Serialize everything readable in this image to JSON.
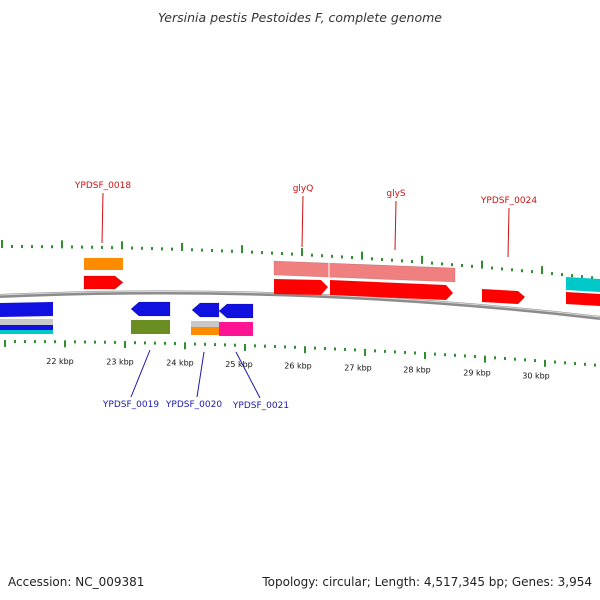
{
  "title": "Yersinia pestis Pestoides F, complete genome",
  "footer": {
    "accession": "Accession: NC_009381",
    "summary": "Topology: circular; Length: 4,517,345 bp; Genes: 3,954"
  },
  "colors": {
    "tick": "#2f8f2f",
    "backbone": "#8c8c8c",
    "label_top": "#cc1111",
    "label_bottom": "#1a1aa8",
    "red": "#ff0000",
    "salmon": "#f08080",
    "orange": "#ff8c00",
    "blue": "#1010e0",
    "olive": "#6b8e23",
    "silver": "#c8c8c8",
    "pink": "#ff1493",
    "cyan": "#00c8c8"
  },
  "scale": {
    "labels": [
      "22 kbp",
      "23 kbp",
      "24 kbp",
      "25 kbp",
      "26 kbp",
      "27 kbp",
      "28 kbp",
      "29 kbp",
      "30 kbp"
    ]
  },
  "gene_labels_top": [
    "YPDSF_0018",
    "glyQ",
    "glyS",
    "YPDSF_0024"
  ],
  "gene_labels_bottom": [
    "YPDSF_0019",
    "YPDSF_0020",
    "YPDSF_0021"
  ]
}
